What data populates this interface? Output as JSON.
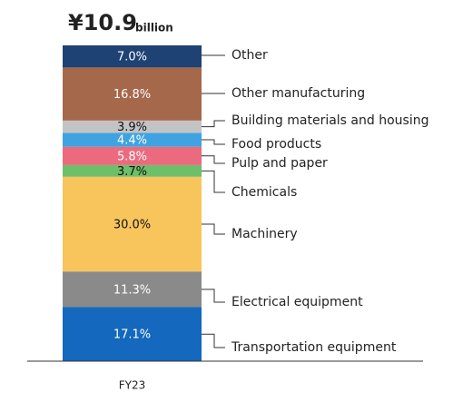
{
  "chart_data": {
    "type": "stacked_bar",
    "title": "¥10.9",
    "title_unit": "billion",
    "categories": [
      "FY23"
    ],
    "ylim": [
      0,
      100
    ],
    "series": [
      {
        "name": "Transportation equipment",
        "color": "#1468bd",
        "values": [
          17.1
        ],
        "value_labels": [
          "17.1%"
        ]
      },
      {
        "name": "Electrical equipment",
        "color": "#8a8a8a",
        "values": [
          11.3
        ],
        "value_labels": [
          "11.3%"
        ]
      },
      {
        "name": "Machinery",
        "color": "#f8c45c",
        "values": [
          30.0
        ],
        "value_labels": [
          "30.0%"
        ]
      },
      {
        "name": "Chemicals",
        "color": "#6dbf69",
        "values": [
          3.7
        ],
        "value_labels": [
          "3.7%"
        ]
      },
      {
        "name": "Pulp and paper",
        "color": "#eb6a7e",
        "values": [
          5.8
        ],
        "value_labels": [
          "5.8%"
        ]
      },
      {
        "name": "Food products",
        "color": "#3ea3e0",
        "values": [
          4.4
        ],
        "value_labels": [
          "4.4%"
        ]
      },
      {
        "name": "Building materials and housing",
        "color": "#c3c3c3",
        "values": [
          3.9
        ],
        "value_labels": [
          "3.9%"
        ]
      },
      {
        "name": "Other manufacturing",
        "color": "#a5684a",
        "values": [
          16.8
        ],
        "value_labels": [
          "16.8%"
        ]
      },
      {
        "name": "Other",
        "color": "#1e4274",
        "values": [
          7.0
        ],
        "value_labels": [
          "7.0%"
        ]
      }
    ]
  }
}
